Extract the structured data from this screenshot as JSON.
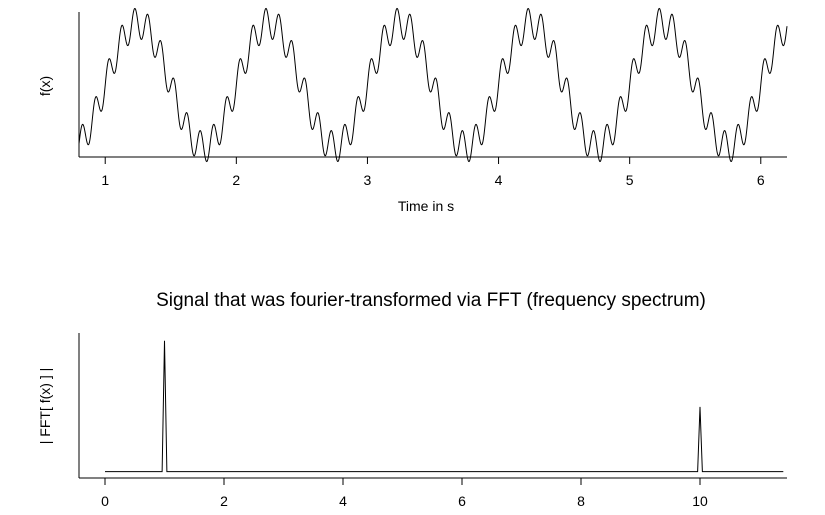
{
  "chart_data": [
    {
      "type": "line",
      "title": "",
      "xlabel": "Time in s",
      "ylabel": "f(x)",
      "xlim": [
        0.8,
        6.2
      ],
      "ylim": [
        -1.1,
        1.1
      ],
      "xticks": [
        1,
        2,
        3,
        4,
        5,
        6
      ],
      "xtick_labels": [
        "1",
        "2",
        "3",
        "4",
        "5",
        "6"
      ],
      "grid": false,
      "series": [
        {
          "name": "",
          "formula": "sin(2*pi*1*x) + 0.25*sin(2*pi*10*x)",
          "components": [
            {
              "frequency_hz": 1,
              "amplitude": 1
            },
            {
              "frequency_hz": 10,
              "amplitude": 0.25
            }
          ]
        }
      ]
    },
    {
      "type": "line",
      "title": "Signal that was fourier-transformed via FFT (frequency spectrum)",
      "xlabel": "",
      "ylabel": "| FFT[ f(x) ] |",
      "xlim": [
        0,
        11.4
      ],
      "ylim": [
        0,
        1.0
      ],
      "xticks": [
        0,
        2,
        4,
        6,
        8,
        10
      ],
      "xtick_labels": [
        "0",
        "2",
        "4",
        "6",
        "8",
        "10"
      ],
      "grid": false,
      "series": [
        {
          "name": "",
          "baseline": 0.01,
          "peaks": [
            {
              "x": 1,
              "y": 0.98
            },
            {
              "x": 10,
              "y": 0.49
            }
          ]
        }
      ]
    }
  ]
}
